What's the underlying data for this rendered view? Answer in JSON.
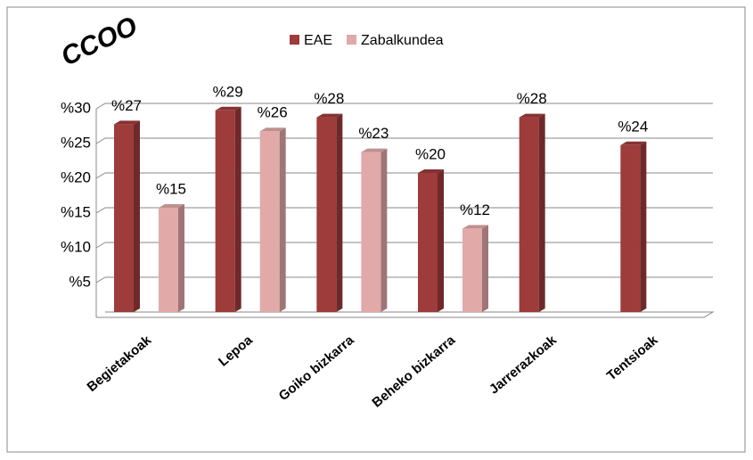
{
  "chart_data": {
    "type": "bar3d",
    "logo": "CCOO",
    "categories": [
      "Begietakoak",
      "Lepoa",
      "Goiko bizkarra",
      "Beheko bizkarra",
      "Jarrerazkoak",
      "Tentsioak"
    ],
    "series": [
      {
        "name": "EAE",
        "color": "#9e3b3b",
        "values": [
          27,
          29,
          28,
          20,
          28,
          24
        ],
        "value_labels": [
          "%27",
          "%29",
          "%28",
          "%20",
          "%28",
          "%24"
        ]
      },
      {
        "name": "Zabalkundea",
        "color": "#e2a9a9",
        "values": [
          15,
          26,
          23,
          12,
          null,
          null
        ],
        "value_labels": [
          "%15",
          "%26",
          "%23",
          "%12",
          null,
          null
        ]
      }
    ],
    "ylim": [
      0,
      30
    ],
    "yticks": [
      {
        "value": 5,
        "label": "%5"
      },
      {
        "value": 10,
        "label": "%10"
      },
      {
        "value": 15,
        "label": "%15"
      },
      {
        "value": 20,
        "label": "%20"
      },
      {
        "value": 25,
        "label": "%25"
      },
      {
        "value": 30,
        "label": "%30"
      }
    ],
    "grid": true,
    "legend": "top"
  }
}
